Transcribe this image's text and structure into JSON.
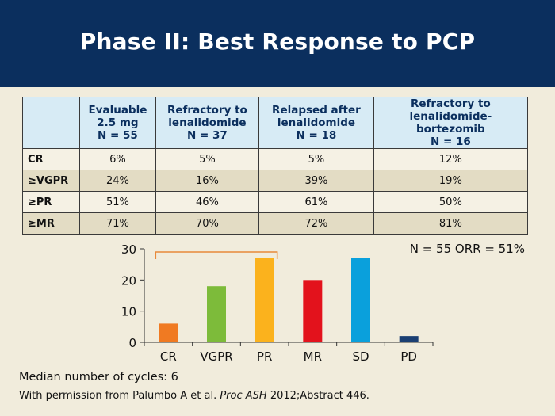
{
  "slide": {
    "title": "Phase II: Best Response to PCP"
  },
  "table": {
    "headers": [
      {
        "lines": []
      },
      {
        "lines": [
          "Evaluable",
          "2.5 mg",
          "N = 55"
        ]
      },
      {
        "lines": [
          "Refractory to",
          "lenalidomide",
          "N = 37"
        ]
      },
      {
        "lines": [
          "Relapsed after",
          "lenalidomide",
          "N = 18"
        ]
      },
      {
        "lines": [
          "Refractory to",
          "lenalidomide-bortezomib",
          "N = 16"
        ]
      }
    ],
    "rows": [
      {
        "label": "CR",
        "values": [
          "6%",
          "5%",
          "5%",
          "12%"
        ]
      },
      {
        "label": "≥VGPR",
        "values": [
          "24%",
          "16%",
          "39%",
          "19%"
        ]
      },
      {
        "label": "≥PR",
        "values": [
          "51%",
          "46%",
          "61%",
          "50%"
        ]
      },
      {
        "label": "≥MR",
        "values": [
          "71%",
          "70%",
          "72%",
          "81%"
        ]
      }
    ]
  },
  "chart_data": {
    "type": "bar",
    "categories": [
      "CR",
      "VGPR",
      "PR",
      "MR",
      "SD",
      "PD"
    ],
    "values": [
      6,
      18,
      27,
      20,
      27,
      2
    ],
    "colors": [
      "#f07a22",
      "#7dbb3a",
      "#fbb21d",
      "#e3121c",
      "#0aa0dc",
      "#1b3f73"
    ],
    "ylim": [
      0,
      30
    ],
    "yticks": [
      "0",
      "10",
      "20",
      "30"
    ],
    "annotation": "N = 55  ORR = 51%",
    "bracket": {
      "from": "CR",
      "to": "PR",
      "color": "#e8893a"
    }
  },
  "footnotes": {
    "median": "Median number of cycles: 6",
    "permission_prefix": "With permission from Palumbo A et al. ",
    "permission_journal": "Proc ASH",
    "permission_suffix": " 2012;Abstract 446."
  }
}
